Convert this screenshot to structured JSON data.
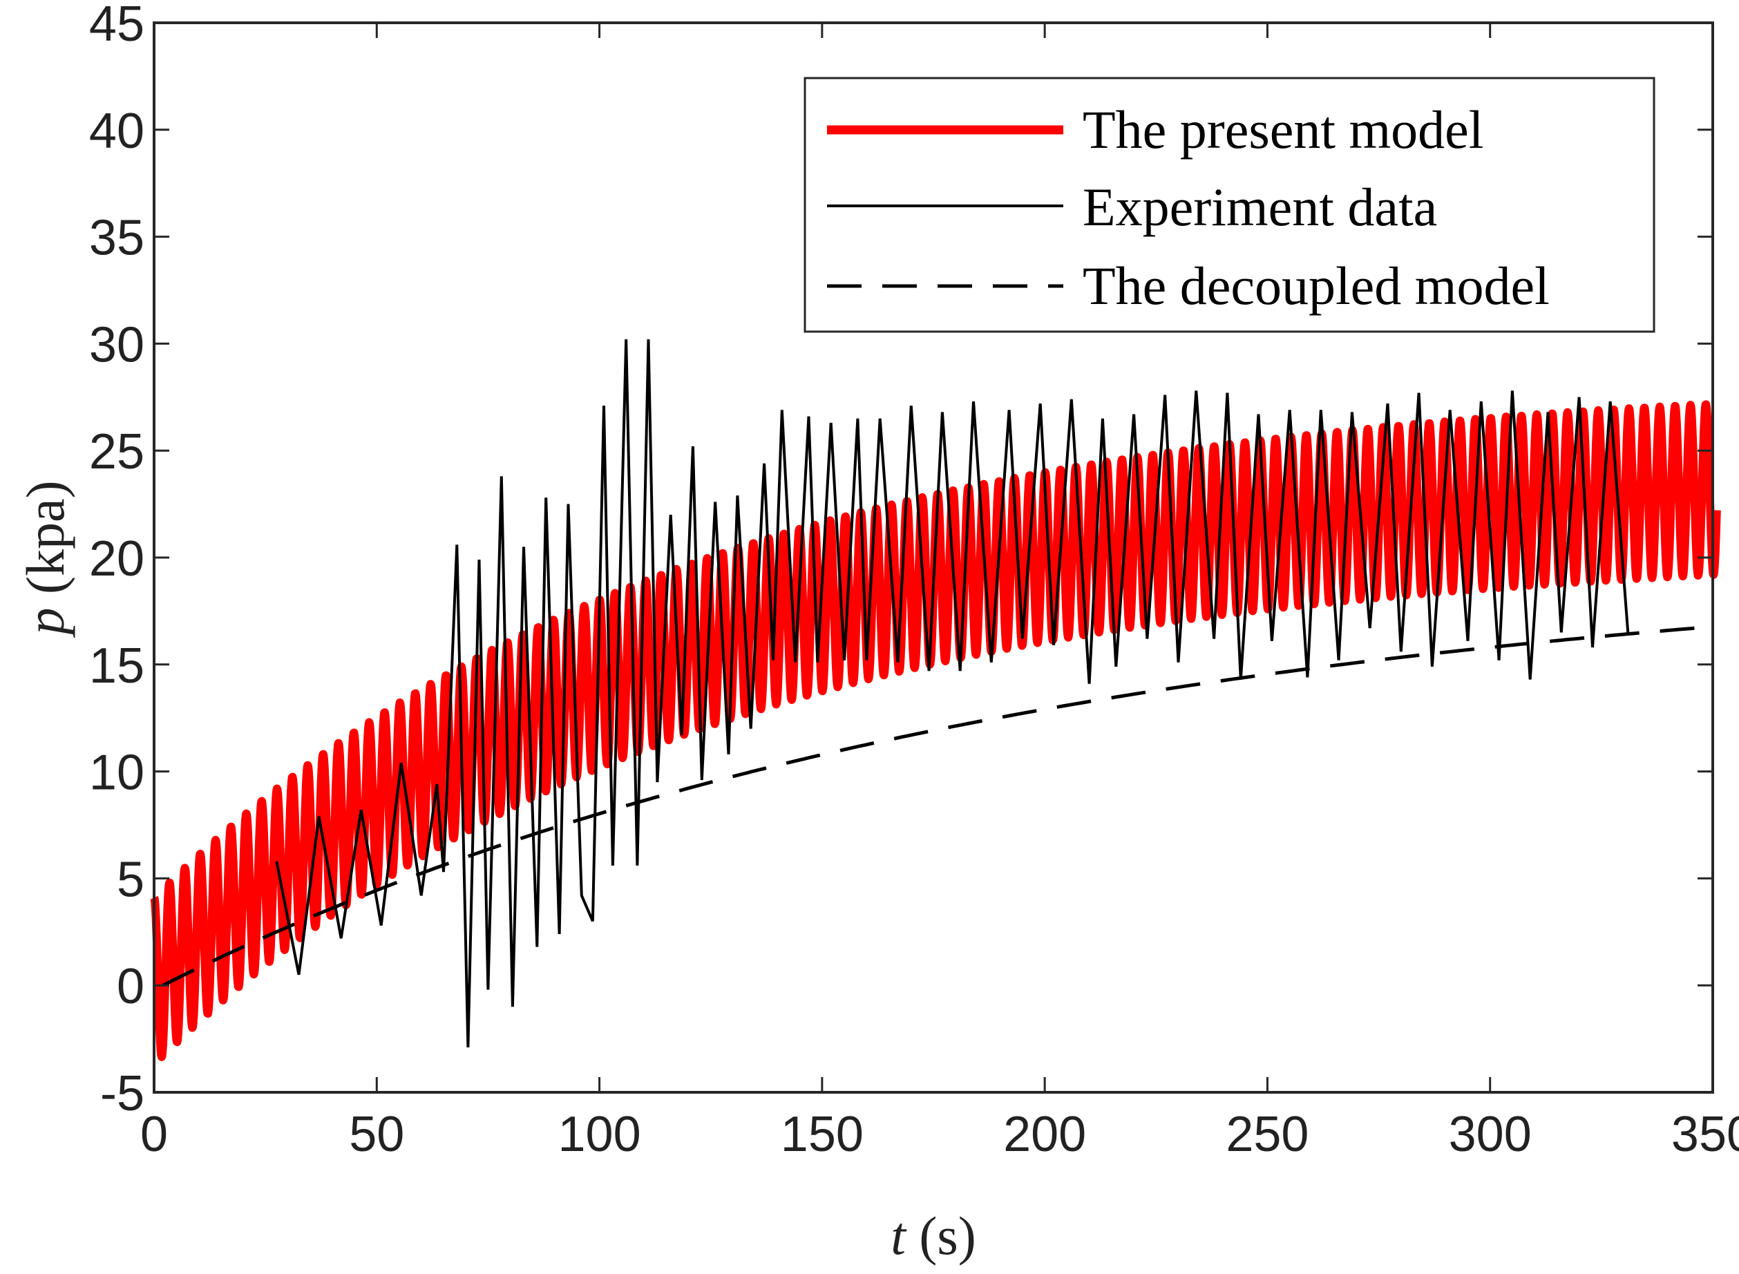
{
  "chart_data": {
    "type": "line",
    "title": "",
    "xlabel_var": "t",
    "xlabel_unit": " (s)",
    "ylabel_var": "p",
    "ylabel_unit": " (kpa)",
    "xlim": [
      0,
      350
    ],
    "ylim": [
      -5,
      45
    ],
    "xticks": [
      "0",
      "50",
      "100",
      "150",
      "200",
      "250",
      "300",
      "350"
    ],
    "yticks": [
      "-5",
      "0",
      "5",
      "10",
      "15",
      "20",
      "25",
      "30",
      "35",
      "40",
      "45"
    ],
    "grid": false,
    "legend_position": "top-right",
    "colors": {
      "present": "#ff0000",
      "experiment": "#000000",
      "decoupled": "#000000"
    },
    "series": [
      {
        "name": "The present model",
        "style": "thick-solid",
        "model": "oscillation",
        "mean_start": 0.2,
        "mean_end": 23.2,
        "amplitude_start": 3.9,
        "amplitude_end": 4.0,
        "period": 3.45,
        "x_start": 0,
        "x_end": 351
      },
      {
        "name": "Experiment data",
        "style": "thin-solid",
        "x": [
          27.5,
          32.5,
          37,
          42,
          46.5,
          51,
          55.5,
          60,
          63.5,
          65,
          68,
          70.5,
          73,
          75,
          78,
          80.5,
          83,
          86,
          88,
          91,
          93,
          96,
          98.5,
          101,
          103,
          106,
          108.5,
          111,
          113,
          116,
          118.5,
          121,
          123,
          126,
          129,
          131,
          134,
          137,
          139,
          141,
          144,
          147,
          149,
          152,
          155,
          158,
          160,
          163,
          167,
          170,
          174,
          177,
          181,
          184,
          188,
          192,
          195,
          199,
          202,
          206,
          210,
          213,
          216,
          220,
          223,
          227,
          230,
          234,
          238,
          241,
          244,
          248,
          251,
          255,
          259,
          262,
          266,
          269,
          273,
          277,
          280,
          284,
          287,
          291,
          295,
          298,
          302,
          305,
          309,
          313,
          316,
          320,
          323,
          327,
          331
        ],
        "y": [
          5.8,
          0.5,
          7.9,
          2.2,
          8.2,
          2.8,
          10.4,
          4.2,
          9.4,
          5.3,
          20.6,
          -2.9,
          19.9,
          -0.2,
          23.8,
          -1,
          20.5,
          1.8,
          22.8,
          2.4,
          22.5,
          4.2,
          3,
          27.1,
          5.6,
          30.2,
          5.6,
          30.2,
          9.5,
          22,
          11.7,
          25.2,
          9.6,
          22.6,
          10.8,
          22.9,
          12,
          24.4,
          15.2,
          26.9,
          15.1,
          26.6,
          15.1,
          26.3,
          15.2,
          26.5,
          15.2,
          26.5,
          15.1,
          27.1,
          14.7,
          26.8,
          14.7,
          27.3,
          15.1,
          26.9,
          16.2,
          27.2,
          15.9,
          27.4,
          14.1,
          26.5,
          14.9,
          26.7,
          16.2,
          27.6,
          15.1,
          27.8,
          16.2,
          27.7,
          14.3,
          26.7,
          16.1,
          26.9,
          14.4,
          26.9,
          15.2,
          26.8,
          16.7,
          27.2,
          15.6,
          27.7,
          14.9,
          26.9,
          16.1,
          27.3,
          15.2,
          27.8,
          14.3,
          26.8,
          16.5,
          27.5,
          15.8,
          27.3,
          16.4
        ]
      },
      {
        "name": "The decoupled model",
        "style": "dashed",
        "model": "saturating",
        "y_start": 0,
        "y_end": 16.7,
        "x_start": 2,
        "x_end": 346
      }
    ]
  }
}
